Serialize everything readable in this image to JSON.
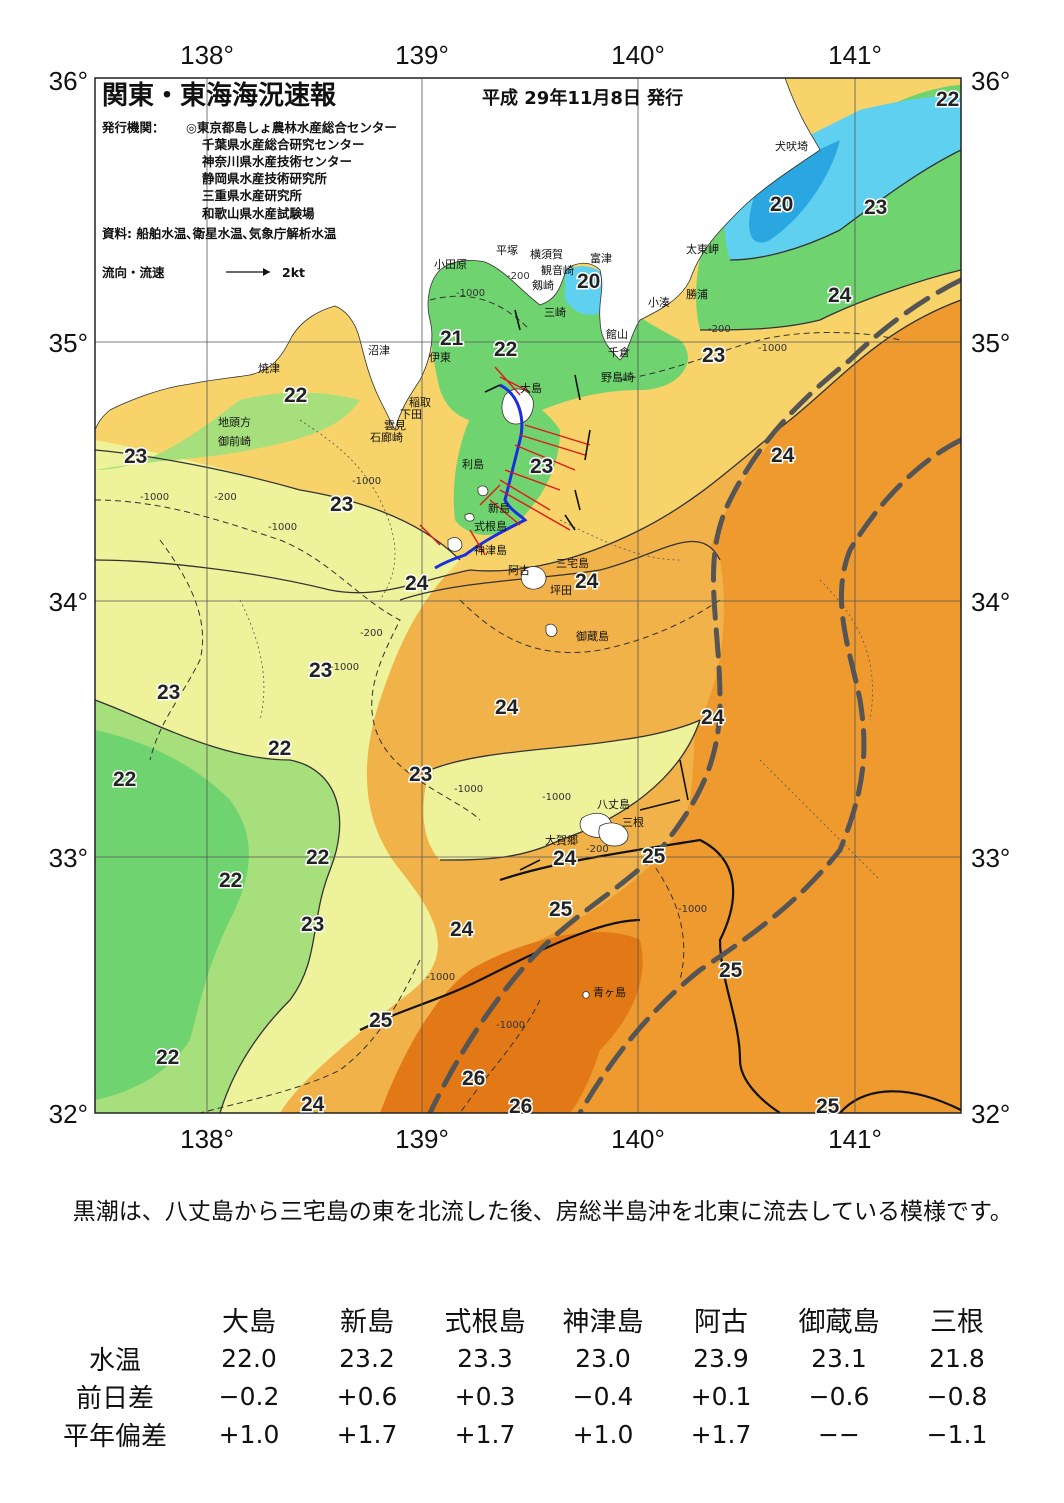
{
  "header": {
    "title": "関東・東海海況速報",
    "issue_date": "平成 29年11月8日 発行",
    "agency_label": "発行機関：",
    "agencies": [
      "◎東京都島しょ農林水産総合センター",
      "千葉県水産総合研究センター",
      "神奈川県水産技術センター",
      "静岡県水産技術研究所",
      "三重県水産研究所",
      "和歌山県水産試験場"
    ],
    "source": "資料: 船舶水温､衛星水温､気象庁解析水温",
    "legend_label": "流向・流速",
    "legend_scale": "2kt"
  },
  "axes": {
    "lon_labels": [
      "138°",
      "139°",
      "140°",
      "141°"
    ],
    "lat_labels": [
      "36°",
      "35°",
      "34°",
      "33°",
      "32°"
    ]
  },
  "colors": {
    "t20": "#2aa7e0",
    "t21": "#5fd0ef",
    "t22a": "#6fd36f",
    "t22b": "#a6df7c",
    "t23a": "#eef29a",
    "t23b": "#f7d36a",
    "t24": "#f2b24a",
    "t25": "#ef9a2e",
    "t26": "#e27816",
    "land": "#ffffff",
    "kuroshio": "#555555",
    "drifter": "#1a2fe0",
    "current": "#e01818"
  },
  "isotherm_labels": [
    "22",
    "20",
    "23",
    "24",
    "23",
    "21",
    "22",
    "20",
    "22",
    "23",
    "24",
    "23",
    "24",
    "24",
    "23",
    "23",
    "22",
    "22",
    "23",
    "24",
    "24",
    "23",
    "22",
    "24",
    "25",
    "22",
    "23",
    "24",
    "25",
    "25",
    "25",
    "26",
    "26",
    "22",
    "24",
    "25"
  ],
  "depth_labels": [
    "-1000",
    "-200",
    "-1000",
    "-200",
    "-1000",
    "-200",
    "-1000",
    "-1000",
    "-200",
    "-1000",
    "-1000",
    "-1000",
    "-1000",
    "-1000",
    "-200",
    "-1000"
  ],
  "places": [
    "犬吠埼",
    "太東岬",
    "富津",
    "勝浦",
    "小湊",
    "横須賀",
    "観音崎",
    "剱崎",
    "三崎",
    "平塚",
    "小田原",
    "館山",
    "千倉",
    "野島崎",
    "沼津",
    "伊東",
    "焼津",
    "稲取",
    "下田",
    "雲見",
    "石廊崎",
    "地頭方",
    "御前崎",
    "大島",
    "利島",
    "新島",
    "式根島",
    "神津島",
    "三宅島",
    "阿古",
    "坪田",
    "御蔵島",
    "八丈島",
    "三根",
    "大賀郷",
    "青ヶ島"
  ],
  "summary": "黒潮は、八丈島から三宅島の東を北流した後、房総半島沖を北東に流去している模様です。",
  "table": {
    "columns": [
      "大島",
      "新島",
      "式根島",
      "神津島",
      "阿古",
      "御蔵島",
      "三根"
    ],
    "rows": [
      {
        "label": "水温",
        "values": [
          "22.0",
          "23.2",
          "23.3",
          "23.0",
          "23.9",
          "23.1",
          "21.8"
        ]
      },
      {
        "label": "前日差",
        "values": [
          "−0.2",
          "+0.6",
          "+0.3",
          "−0.4",
          "+0.1",
          "−0.6",
          "−0.8"
        ]
      },
      {
        "label": "平年偏差",
        "values": [
          "+1.0",
          "+1.7",
          "+1.7",
          "+1.0",
          "+1.7",
          "−−",
          "−1.1"
        ]
      }
    ]
  }
}
